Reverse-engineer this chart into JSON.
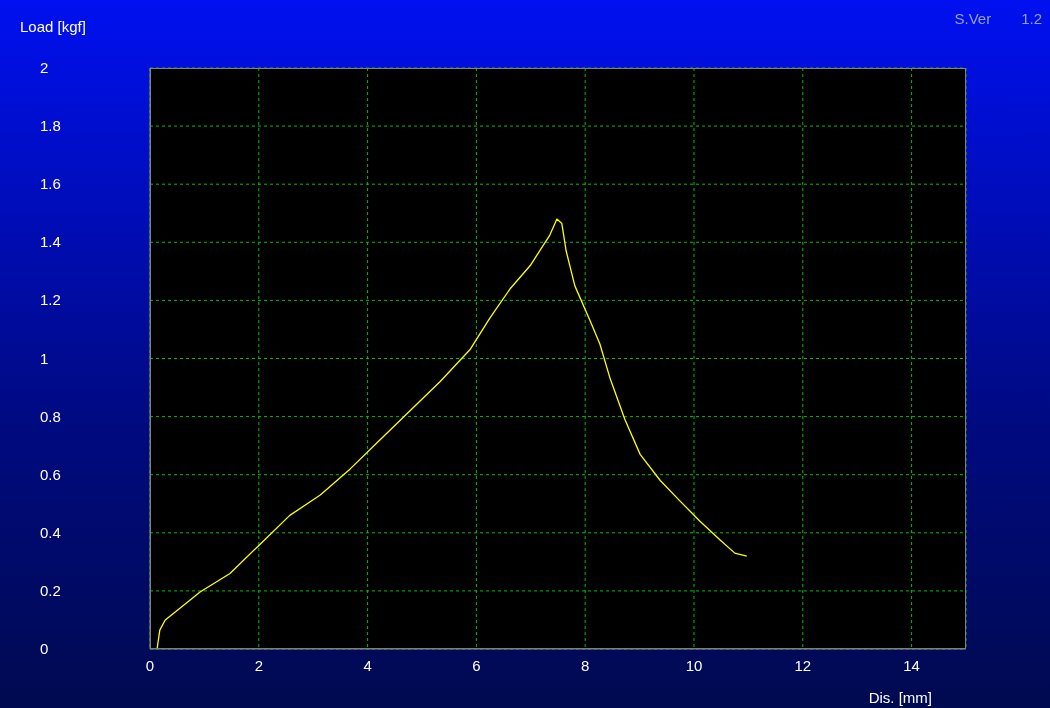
{
  "chart_data": {
    "type": "line",
    "xlabel": "Dis. [mm]",
    "ylabel": "Load [kgf]",
    "annotations": [
      "S.Ver",
      "1.2"
    ],
    "series": [
      {
        "color": "#ffff00",
        "x": [
          0,
          0.13,
          0.18,
          0.28,
          0.55,
          0.92,
          1.47,
          2.02,
          2.57,
          3.13,
          3.68,
          4.23,
          4.78,
          5.33,
          5.88,
          6.25,
          6.62,
          6.99,
          7.35,
          7.48,
          7.57,
          7.65,
          7.81,
          8.09,
          8.27,
          8.46,
          8.73,
          9.01,
          9.38,
          9.74,
          10.11,
          10.48,
          10.75,
          10.97
        ],
        "values": [
          0,
          0,
          0.065,
          0.1,
          0.14,
          0.196,
          0.26,
          0.36,
          0.46,
          0.53,
          0.62,
          0.72,
          0.82,
          0.92,
          1.03,
          1.14,
          1.24,
          1.32,
          1.425,
          1.48,
          1.465,
          1.37,
          1.25,
          1.13,
          1.05,
          0.93,
          0.79,
          0.67,
          0.58,
          0.51,
          0.44,
          0.375,
          0.33,
          0.32
        ]
      }
    ],
    "xlim": [
      0,
      15
    ],
    "xticks": [
      0,
      2,
      4,
      6,
      8,
      10,
      12,
      14
    ],
    "ylim": [
      0,
      2
    ],
    "yticks": [
      0,
      0.2,
      0.4,
      0.6,
      0.8,
      1,
      1.2,
      1.4,
      1.6,
      1.8,
      2
    ],
    "grid": true,
    "marker": "none",
    "line_style": "solid"
  }
}
